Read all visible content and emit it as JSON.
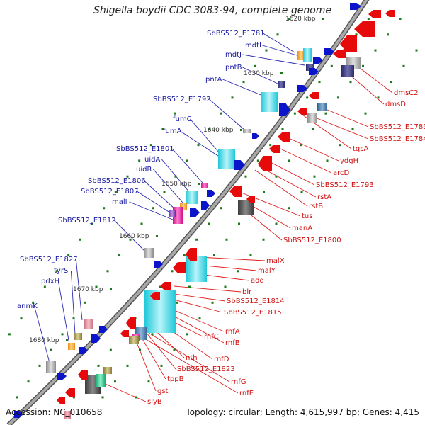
{
  "title": "Shigella boydii CDC 3083-94, complete genome",
  "footer": {
    "accession": "Accession: NC_010658",
    "summary": "Topology: circular; Length: 4,615,997 bp; Genes: 4,415"
  },
  "colors": {
    "backbone": "#a8a8a8",
    "forward_label": "#1a1aa0",
    "reverse_label": "#d01010",
    "forward_strand": "#0a14c8",
    "reverse_strand": "#e60a0a",
    "tick": "#1a7a1a"
  },
  "ruler": [
    "1620 kbp",
    "1630 kbp",
    "1640 kbp",
    "1650 kbp",
    "1660 kbp",
    "1670 kbp",
    "1680 kbp"
  ],
  "forward_genes": [
    "SbBS512_E1781",
    "mdtI",
    "mdtJ",
    "pntB",
    "pntA",
    "SbBS512_E1792",
    "fumC",
    "fumA",
    "SbBS512_E1801",
    "uidA",
    "uidR",
    "SbBS512_E1806",
    "SbBS512_E1807",
    "malI",
    "SbBS512_E1812",
    "SbBS512_E1827",
    "tyrS",
    "pdxH",
    "anmK"
  ],
  "reverse_genes": [
    "dmsC2",
    "dmsD",
    "SbBS512_E1783",
    "SbBS512_E1784",
    "tqsA",
    "ydgH",
    "arcD",
    "SbBS512_E1793",
    "rstA",
    "rstB",
    "tus",
    "manA",
    "SbBS512_E1800",
    "malX",
    "malY",
    "add",
    "blr",
    "SbBS512_E1814",
    "SbBS512_E1815",
    "rnfA",
    "rnfB",
    "rnfC",
    "rnfD",
    "nth",
    "SbBS512_E1823",
    "rnfG",
    "rnfE",
    "tppB",
    "gst",
    "slyB"
  ]
}
